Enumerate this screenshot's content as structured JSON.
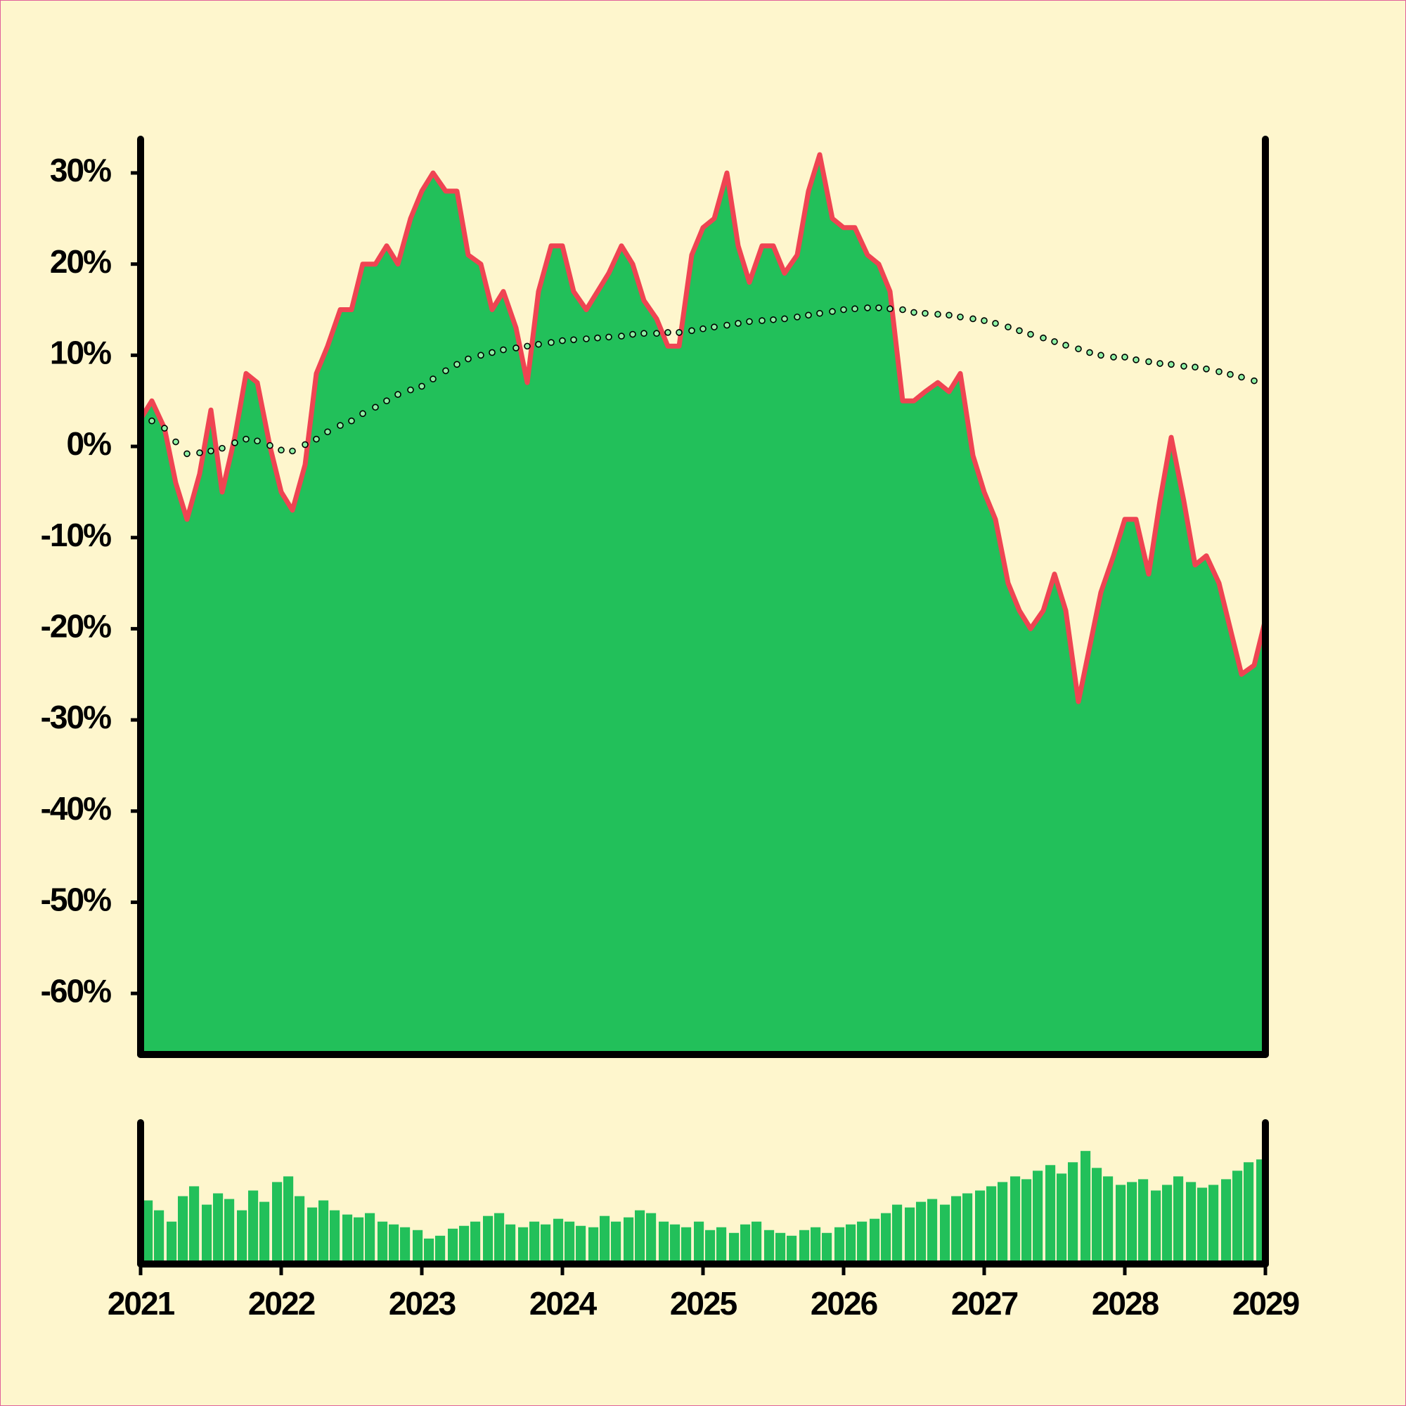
{
  "chart_data": [
    {
      "type": "area",
      "x": [
        2021,
        2021.08,
        2021.17,
        2021.25,
        2021.33,
        2021.42,
        2021.5,
        2021.58,
        2021.67,
        2021.75,
        2021.83,
        2021.92,
        2022,
        2022.08,
        2022.17,
        2022.25,
        2022.33,
        2022.42,
        2022.5,
        2022.58,
        2022.67,
        2022.75,
        2022.83,
        2022.92,
        2023,
        2023.08,
        2023.17,
        2023.25,
        2023.33,
        2023.42,
        2023.5,
        2023.58,
        2023.67,
        2023.75,
        2023.83,
        2023.92,
        2024,
        2024.08,
        2024.17,
        2024.25,
        2024.33,
        2024.42,
        2024.5,
        2024.58,
        2024.67,
        2024.75,
        2024.83,
        2024.92,
        2025,
        2025.08,
        2025.17,
        2025.25,
        2025.33,
        2025.42,
        2025.5,
        2025.58,
        2025.67,
        2025.75,
        2025.83,
        2025.92,
        2026,
        2026.08,
        2026.17,
        2026.25,
        2026.33,
        2026.42,
        2026.5,
        2026.58,
        2026.67,
        2026.75,
        2026.83,
        2026.92,
        2027,
        2027.08,
        2027.17,
        2027.25,
        2027.33,
        2027.42,
        2027.5,
        2027.58,
        2027.67,
        2027.75,
        2027.83,
        2027.92,
        2028,
        2028.08,
        2028.17,
        2028.25,
        2028.33,
        2028.42,
        2028.5,
        2028.58,
        2028.67,
        2028.75,
        2028.83,
        2028.92,
        2029
      ],
      "series": [
        {
          "type": "area",
          "color": "#22c05a",
          "line_color": "#ef4452",
          "values": [
            3,
            5,
            2,
            -4,
            -8,
            -3,
            4,
            -5,
            1,
            8,
            7,
            0,
            -5,
            -7,
            -2,
            8,
            11,
            15,
            15,
            20,
            20,
            22,
            20,
            25,
            28,
            30,
            28,
            28,
            21,
            20,
            15,
            17,
            13,
            7,
            17,
            22,
            22,
            17,
            15,
            17,
            19,
            22,
            20,
            16,
            14,
            11,
            11,
            21,
            24,
            25,
            30,
            22,
            18,
            22,
            22,
            19,
            21,
            28,
            32,
            25,
            24,
            24,
            21,
            20,
            17,
            5,
            5,
            6,
            7,
            6,
            8,
            -1,
            -5,
            -8,
            -15,
            -18,
            -20,
            -18,
            -14,
            -18,
            -28,
            -22,
            -16,
            -12,
            -8,
            -8,
            -14,
            -6,
            1,
            -6,
            -13,
            -12,
            -15,
            -20,
            -25,
            -24,
            -19
          ]
        },
        {
          "type": "dots",
          "color": "#8ef0a4",
          "values": [
            1.8,
            2.8,
            2,
            0.5,
            -0.8,
            -0.7,
            -0.5,
            -0.2,
            0.4,
            0.8,
            0.6,
            0.1,
            -0.4,
            -0.5,
            0.2,
            0.8,
            1.6,
            2.3,
            2.8,
            3.6,
            4.3,
            5,
            5.7,
            6.2,
            6.6,
            7.4,
            8.3,
            9,
            9.6,
            10,
            10.3,
            10.6,
            10.8,
            11,
            11.2,
            11.4,
            11.6,
            11.7,
            11.8,
            11.9,
            12,
            12.1,
            12.3,
            12.4,
            12.4,
            12.5,
            12.5,
            12.7,
            12.9,
            13.1,
            13.3,
            13.5,
            13.7,
            13.8,
            13.9,
            14,
            14.2,
            14.4,
            14.6,
            14.8,
            15,
            15.1,
            15.2,
            15.2,
            15.1,
            15,
            14.7,
            14.6,
            14.5,
            14.4,
            14.2,
            14,
            13.8,
            13.5,
            13.1,
            12.7,
            12.3,
            11.9,
            11.5,
            11.1,
            10.7,
            10.3,
            10,
            9.8,
            9.8,
            9.5,
            9.3,
            9.1,
            9,
            8.8,
            8.7,
            8.5,
            8.2,
            7.9,
            7.6,
            7.2,
            6.9
          ]
        }
      ],
      "xlim": [
        2021,
        2029
      ],
      "ylim": [
        -66.7,
        33.7
      ],
      "yticks": [
        {
          "value": -60,
          "label": "-60%"
        },
        {
          "value": -50,
          "label": "-50%"
        },
        {
          "value": -40,
          "label": "-40%"
        },
        {
          "value": -30,
          "label": "-30%"
        },
        {
          "value": -20,
          "label": "-20%"
        },
        {
          "value": -10,
          "label": "-10%"
        },
        {
          "value": 0,
          "label": "0%"
        },
        {
          "value": 10,
          "label": "10%"
        },
        {
          "value": 20,
          "label": "20%"
        },
        {
          "value": 30,
          "label": "30%"
        }
      ]
    },
    {
      "type": "bar",
      "color": "#22c05a",
      "x": [
        2021,
        2021.08,
        2021.17,
        2021.25,
        2021.33,
        2021.42,
        2021.5,
        2021.58,
        2021.67,
        2021.75,
        2021.83,
        2021.92,
        2022,
        2022.08,
        2022.17,
        2022.25,
        2022.33,
        2022.42,
        2022.5,
        2022.58,
        2022.67,
        2022.75,
        2022.83,
        2022.92,
        2023,
        2023.08,
        2023.17,
        2023.25,
        2023.33,
        2023.42,
        2023.5,
        2023.58,
        2023.67,
        2023.75,
        2023.83,
        2023.92,
        2024,
        2024.08,
        2024.17,
        2024.25,
        2024.33,
        2024.42,
        2024.5,
        2024.58,
        2024.67,
        2024.75,
        2024.83,
        2024.92,
        2025,
        2025.08,
        2025.17,
        2025.25,
        2025.33,
        2025.42,
        2025.5,
        2025.58,
        2025.67,
        2025.75,
        2025.83,
        2025.92,
        2026,
        2026.08,
        2026.17,
        2026.25,
        2026.33,
        2026.42,
        2026.5,
        2026.58,
        2026.67,
        2026.75,
        2026.83,
        2026.92,
        2027,
        2027.08,
        2027.17,
        2027.25,
        2027.33,
        2027.42,
        2027.5,
        2027.58,
        2027.67,
        2027.75,
        2027.83,
        2027.92,
        2028,
        2028.08,
        2028.17,
        2028.25,
        2028.33,
        2028.42,
        2028.5,
        2028.58,
        2028.67,
        2028.75,
        2028.83,
        2028.92
      ],
      "values": [
        45,
        38,
        30,
        48,
        55,
        42,
        50,
        46,
        38,
        52,
        44,
        58,
        62,
        48,
        40,
        45,
        38,
        35,
        33,
        36,
        30,
        28,
        26,
        24,
        18,
        20,
        25,
        27,
        30,
        34,
        36,
        28,
        26,
        30,
        28,
        32,
        30,
        27,
        26,
        34,
        30,
        33,
        38,
        36,
        30,
        28,
        26,
        30,
        24,
        26,
        22,
        28,
        30,
        24,
        22,
        20,
        24,
        26,
        22,
        26,
        28,
        30,
        32,
        36,
        42,
        40,
        44,
        46,
        42,
        48,
        50,
        52,
        55,
        58,
        62,
        60,
        66,
        70,
        64,
        72,
        80,
        68,
        62,
        56,
        58,
        60,
        52,
        56,
        62,
        58,
        54,
        56,
        60,
        66,
        72,
        74
      ],
      "xlim": [
        2021,
        2029
      ],
      "ylim": [
        0,
        100
      ],
      "xticks": [
        2021,
        2022,
        2023,
        2024,
        2025,
        2026,
        2027,
        2028,
        2029
      ]
    }
  ]
}
